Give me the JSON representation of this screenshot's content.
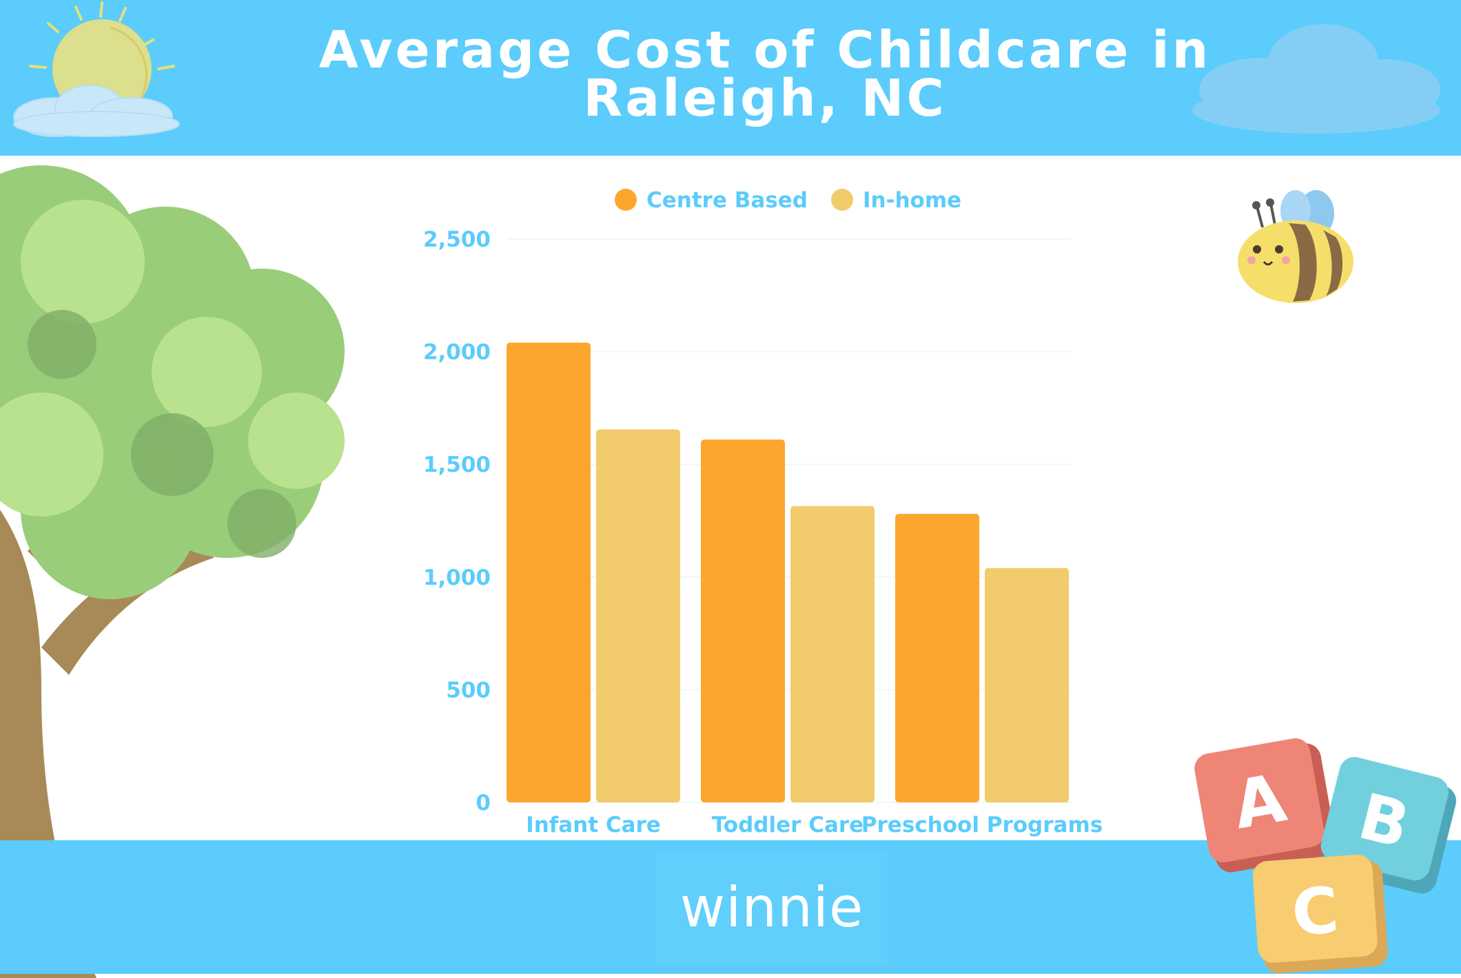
{
  "header": {
    "title": "Average Cost of Childcare in Raleigh, NC"
  },
  "footer": {
    "brand": "winnie"
  },
  "decorations": {
    "sun": "sun-icon",
    "cloud": "cloud-icon",
    "tree": "tree-icon",
    "bee": "bee-icon",
    "blocks": [
      "A",
      "B",
      "C"
    ]
  },
  "colors": {
    "header_bg": "#5bccfc",
    "centre_based": "#fda62e",
    "in_home": "#f2cb6c",
    "axis_text": "#5bccfc"
  },
  "chart_data": {
    "type": "bar",
    "title": "Average Cost of Childcare in Raleigh, NC",
    "xlabel": "",
    "ylabel": "",
    "categories": [
      "Infant Care",
      "Toddler Care",
      "Preschool Programs"
    ],
    "series": [
      {
        "name": "Centre Based",
        "values": [
          2040,
          1610,
          1280
        ]
      },
      {
        "name": "In-home",
        "values": [
          1655,
          1315,
          1040
        ]
      }
    ],
    "ylim": [
      0,
      2500
    ],
    "yticks": [
      "0",
      "500",
      "1,000",
      "1,500",
      "2,000",
      "2,500"
    ],
    "grid": true,
    "legend": "top"
  }
}
